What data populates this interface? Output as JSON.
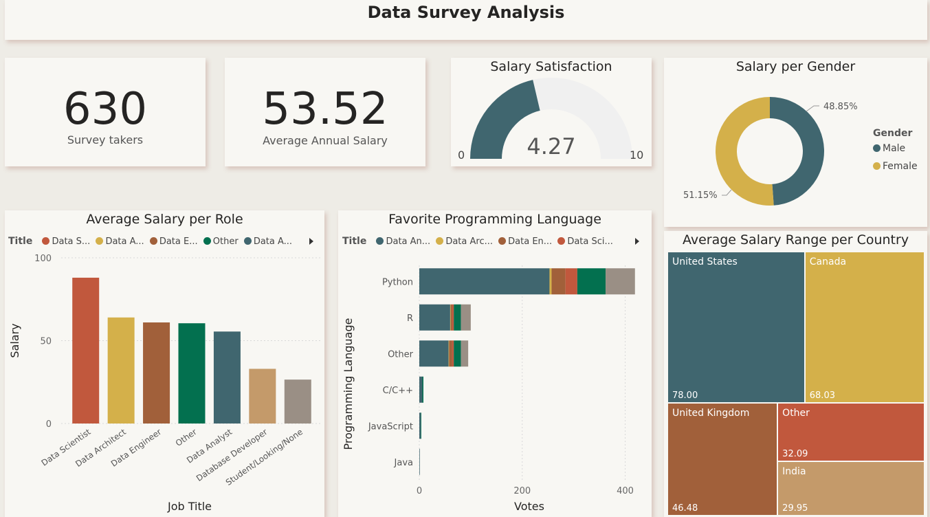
{
  "header": {
    "title": "Data Survey Analysis"
  },
  "kpis": [
    {
      "value": "630",
      "label": "Survey takers"
    },
    {
      "value": "53.52",
      "label": "Average Annual Salary"
    }
  ],
  "gauge": {
    "title": "Salary Satisfaction",
    "value": 4.27,
    "value_label": "4.27",
    "min": 0,
    "max": 10,
    "min_label": "0",
    "max_label": "10",
    "fill_color": "#40666f",
    "track_color": "#f0f0f0"
  },
  "colors": {
    "teal": "#40666f",
    "gold": "#d4b04a",
    "brown": "#a1603a",
    "red": "#c1583d",
    "green": "#03704f",
    "tan": "#c49a6a",
    "gray": "#9a8f85"
  },
  "chart_data": [
    {
      "type": "bar",
      "title": "Average Salary per Role",
      "legend_title": "Title",
      "legend": [
        "Data S...",
        "Data A...",
        "Data E...",
        "Other",
        "Data A..."
      ],
      "categories": [
        "Data Scientist",
        "Data Architect",
        "Data Engineer",
        "Other",
        "Data Analyst",
        "Database Developer",
        "Student/Looking/None"
      ],
      "values": [
        88,
        64,
        61,
        60.5,
        55.5,
        33,
        26.5
      ],
      "bar_colors": [
        "#c1583d",
        "#d4b04a",
        "#a1603a",
        "#03704f",
        "#40666f",
        "#c49a6a",
        "#9a8f85"
      ],
      "legend_colors": [
        "#c1583d",
        "#d4b04a",
        "#a1603a",
        "#03704f",
        "#40666f"
      ],
      "xlabel": "Job Title",
      "ylabel": "Salary",
      "ylim": [
        0,
        100
      ],
      "yticks": [
        0,
        50,
        100
      ]
    },
    {
      "type": "bar",
      "orientation": "horizontal-stacked",
      "title": "Favorite Programming Language",
      "legend_title": "Title",
      "legend": [
        "Data An...",
        "Data Arc...",
        "Data En...",
        "Data Sci..."
      ],
      "legend_colors": [
        "#40666f",
        "#d4b04a",
        "#a1603a",
        "#c1583d"
      ],
      "categories": [
        "Python",
        "R",
        "Other",
        "C/C++",
        "JavaScript",
        "Java"
      ],
      "series": [
        {
          "name": "Data Analyst",
          "color": "#40666f",
          "values": [
            253,
            60,
            57,
            6,
            3,
            1
          ]
        },
        {
          "name": "Data Architect",
          "color": "#d4b04a",
          "values": [
            4,
            1,
            1,
            0,
            0,
            0
          ]
        },
        {
          "name": "Data Engineer",
          "color": "#a1603a",
          "values": [
            27,
            3,
            6,
            0,
            0,
            0
          ]
        },
        {
          "name": "Data Scientist",
          "color": "#c1583d",
          "values": [
            23,
            3,
            3,
            0,
            0,
            0
          ]
        },
        {
          "name": "Other",
          "color": "#03704f",
          "values": [
            55,
            14,
            14,
            2,
            1,
            0
          ]
        },
        {
          "name": "Student/Looking/None",
          "color": "#9a8f85",
          "values": [
            57,
            19,
            14,
            0,
            0,
            0
          ]
        }
      ],
      "xlabel": "Votes",
      "ylabel": "Programming Language",
      "xlim": [
        0,
        430
      ],
      "xticks": [
        0,
        200,
        400
      ]
    },
    {
      "type": "pie",
      "title": "Salary per Gender",
      "legend_title": "Gender",
      "labels": [
        "Male",
        "Female"
      ],
      "values": [
        48.85,
        51.15
      ],
      "value_labels": [
        "48.85%",
        "51.15%"
      ],
      "colors": [
        "#40666f",
        "#d4b04a"
      ]
    },
    {
      "type": "treemap",
      "title": "Average Salary Range per Country",
      "labels": [
        "United States",
        "Canada",
        "United Kingdom",
        "Other",
        "India"
      ],
      "values": [
        78.0,
        68.03,
        46.48,
        32.09,
        29.95
      ],
      "value_labels": [
        "78.00",
        "68.03",
        "46.48",
        "32.09",
        "29.95"
      ],
      "colors": [
        "#40666f",
        "#d4b04a",
        "#a1603a",
        "#c1583d",
        "#c49a6a"
      ]
    }
  ]
}
